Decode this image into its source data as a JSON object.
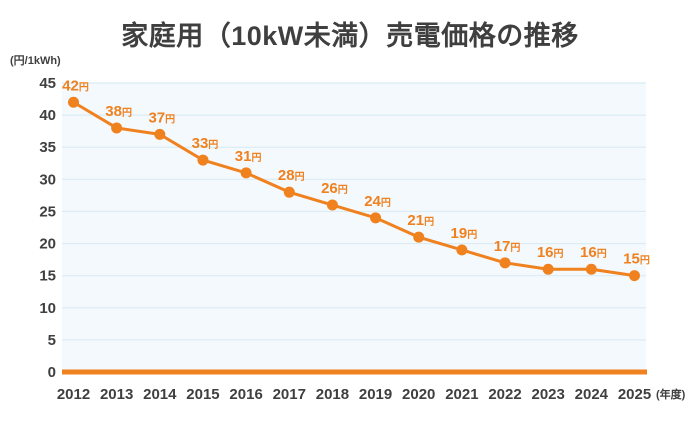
{
  "title": "家庭用（10kW未満）売電価格の推移",
  "unit_label": "(円/1kWh)",
  "colors": {
    "accent": "#f0811f",
    "text": "#3f3f3f",
    "plot_bg": "#f3f9fd",
    "grid": "#dbecf5",
    "background": "#ffffff"
  },
  "chart_data": {
    "type": "line",
    "title": "家庭用（10kW未満）売電価格の推移",
    "ylabel": "(円/1kWh)",
    "xlabel": "(年度)",
    "categories": [
      "2012",
      "2013",
      "2014",
      "2015",
      "2016",
      "2017",
      "2018",
      "2019",
      "2020",
      "2021",
      "2022",
      "2023",
      "2024",
      "2025"
    ],
    "values": [
      42,
      38,
      37,
      33,
      31,
      28,
      26,
      24,
      21,
      19,
      17,
      16,
      16,
      15
    ],
    "value_suffix": "円",
    "ylim": [
      0,
      45
    ],
    "ytick_step": 5,
    "grid": true,
    "legend": "none"
  }
}
